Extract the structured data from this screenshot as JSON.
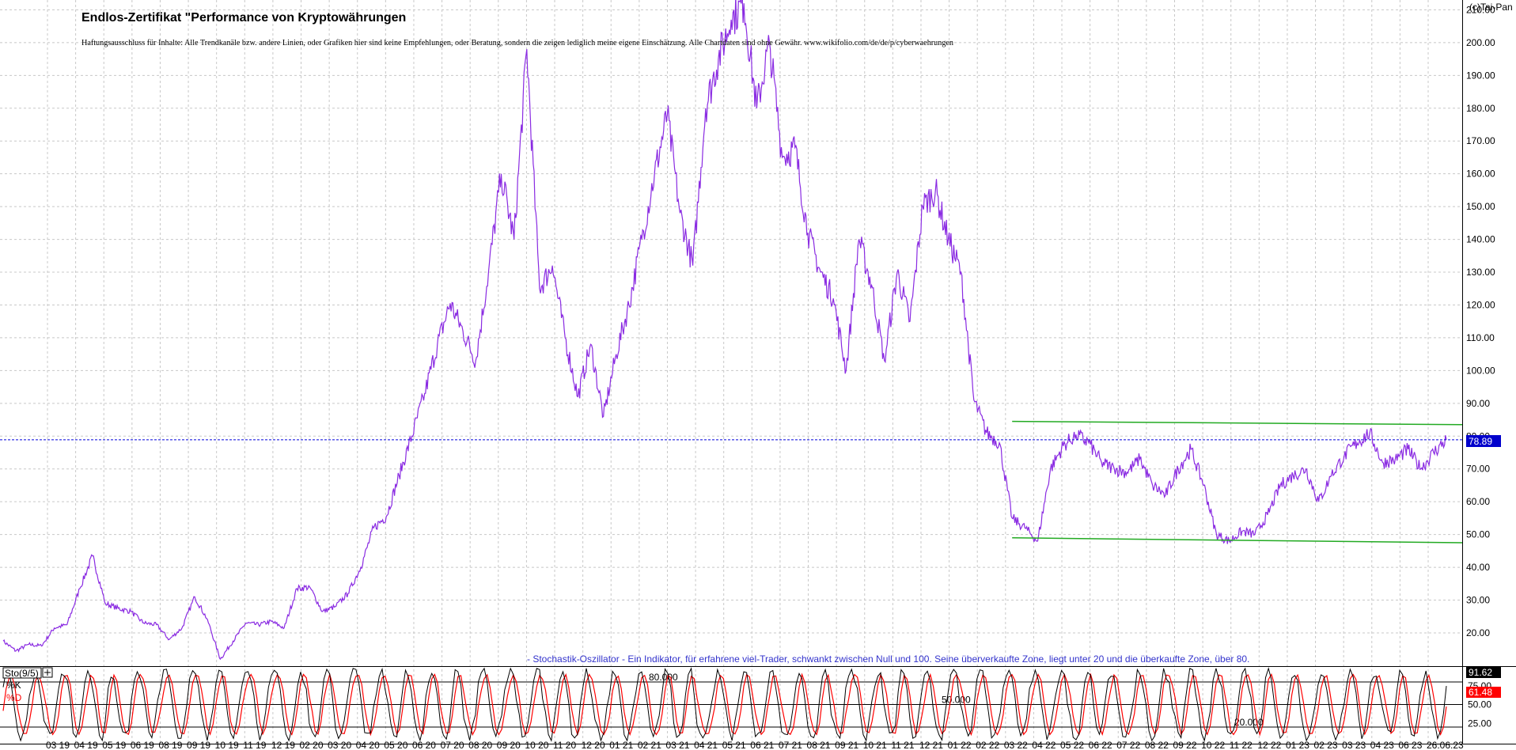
{
  "chart_data": {
    "type": "line",
    "title": "Endlos-Zertifikat \"Performance von Kryptowährungen",
    "disclaimer": "Haftungsausschluss für Inhalte: Alle Trendkanäle bzw. andere Linien, oder Grafiken hier sind keine Empfehlungen, oder Beratung, sondern die zeigen lediglich meine eigene Einschätzung. Alle Chartdaten sind ohne Gewähr.  www.wikifolio.com/de/de/p/cyberwaehrungen",
    "copyright": "(c)Tai-Pan",
    "current_value_label": "78.89",
    "current_value": 78.89,
    "y_ticks": [
      "210.00",
      "200.00",
      "190.00",
      "180.00",
      "170.00",
      "160.00",
      "150.00",
      "140.00",
      "130.00",
      "120.00",
      "110.00",
      "100.00",
      "90.00",
      "80.00",
      "70.00",
      "60.00",
      "50.00",
      "40.00",
      "30.00",
      "20.00"
    ],
    "ylim": [
      13,
      213
    ],
    "x_tick_labels": [
      "03 19",
      "04 19",
      "05 19",
      "06 19",
      "08 19",
      "09 19",
      "10 19",
      "11 19",
      "12 19",
      "02 20",
      "03 20",
      "04 20",
      "05 20",
      "06 20",
      "07 20",
      "08 20",
      "09 20",
      "10 20",
      "11 20",
      "12 20",
      "01 21",
      "02 21",
      "03 21",
      "04 21",
      "05 21",
      "06 21",
      "07 21",
      "08 21",
      "09 21",
      "10 21",
      "11 21",
      "12 21",
      "01 22",
      "02 22",
      "03 22",
      "04 22",
      "05 22",
      "06 22",
      "07 22",
      "08 22",
      "09 22",
      "10 22",
      "11 22",
      "12 22",
      "01 23",
      "02 23",
      "03 23",
      "04 23",
      "06 23",
      "26.06.23"
    ],
    "series": [
      {
        "color": "#8a2be2",
        "values": [
          17.5,
          14.5,
          16.5,
          16.0,
          21.5,
          22.5,
          33.5,
          43.5,
          29.0,
          27.5,
          26.5,
          23.0,
          22.5,
          18.0,
          21.5,
          31.0,
          24.0,
          12.0,
          17.5,
          23.0,
          22.5,
          23.5,
          21.5,
          33.5,
          34.0,
          26.5,
          28.0,
          32.0,
          40.0,
          52.0,
          55.5,
          68.0,
          80.0,
          93.0,
          108.0,
          120.5,
          112.0,
          103.0,
          130.0,
          160.0,
          140.0,
          198.0,
          125.0,
          132.0,
          110.0,
          92.0,
          108.0,
          86.0,
          105.0,
          120.0,
          140.0,
          160.0,
          178.0,
          148.0,
          132.0,
          180.0,
          195.0,
          207.0,
          212.0,
          180.0,
          200.0,
          165.0,
          168.0,
          142.0,
          130.0,
          122.0,
          100.0,
          140.0,
          126.0,
          103.0,
          130.0,
          115.0,
          150.0,
          155.0,
          140.0,
          130.0,
          91.0,
          81.0,
          78.0,
          55.0,
          52.0,
          48.0,
          70.0,
          77.0,
          80.5,
          78.0,
          72.0,
          70.0,
          69.0,
          73.0,
          65.0,
          62.0,
          70.0,
          76.0,
          65.0,
          50.0,
          48.0,
          51.0,
          50.0,
          56.0,
          65.0,
          68.0,
          70.0,
          60.0,
          68.0,
          74.0,
          78.0,
          81.0,
          72.0,
          73.0,
          76.0,
          70.0,
          75.0,
          78.9
        ]
      }
    ],
    "channel_lines": [
      {
        "color": "#22aa22",
        "from_index": 79,
        "to": 113,
        "from_value": 84.5,
        "to_value": 83.5
      },
      {
        "color": "#22aa22",
        "from_index": 79,
        "to": 113,
        "from_value": 49.0,
        "to_value": 47.5
      }
    ],
    "reference_line": {
      "value": 78.89,
      "color": "#0000dd",
      "style": "dashed"
    },
    "annotation": "- Stochastik-Oszillator - Ein Indikator, für erfahrene viel-Trader, schwankt zwischen Null und 100. Seine überverkaufte Zone, liegt unter 20 und die überkaufte Zone, über 80.",
    "grid": true,
    "oscillator": {
      "name": "Sto(9/5)",
      "k_label": "%K",
      "d_label": "%D",
      "k_value": "91.62",
      "d_value": "61.48",
      "k_color": "#000000",
      "d_color": "#ff0000",
      "y_ticks": [
        "75.00",
        "50.00",
        "25.00"
      ],
      "level_labels": [
        "80.000",
        "50.000",
        "20.000"
      ],
      "ylim": [
        0,
        100
      ],
      "cycles": 55
    }
  }
}
